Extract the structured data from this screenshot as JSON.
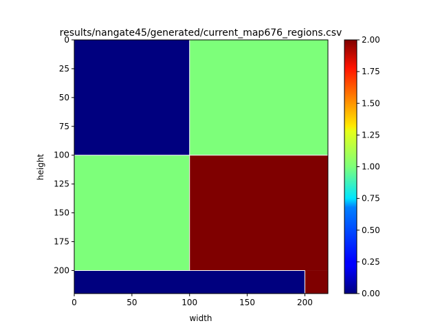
{
  "chart_data": {
    "type": "heatmap",
    "title": "results/nangate45/generated/current_map676_regions.csv",
    "xlabel": "width",
    "ylabel": "height",
    "xlim": [
      0,
      220
    ],
    "ylim": [
      220,
      0
    ],
    "y_inverted": true,
    "x_ticks": [
      0,
      50,
      100,
      150,
      200
    ],
    "y_ticks": [
      0,
      25,
      50,
      75,
      100,
      125,
      150,
      175,
      200
    ],
    "colormap": "jet",
    "colorbar": {
      "range": [
        0.0,
        2.0
      ],
      "ticks": [
        "0.00",
        "0.25",
        "0.50",
        "0.75",
        "1.00",
        "1.25",
        "1.50",
        "1.75",
        "2.00"
      ]
    },
    "regions": [
      {
        "x": [
          0,
          100
        ],
        "y": [
          0,
          100
        ],
        "value": 0
      },
      {
        "x": [
          100,
          220
        ],
        "y": [
          0,
          100
        ],
        "value": 1
      },
      {
        "x": [
          0,
          100
        ],
        "y": [
          100,
          200
        ],
        "value": 1
      },
      {
        "x": [
          100,
          220
        ],
        "y": [
          100,
          200
        ],
        "value": 2
      },
      {
        "x": [
          0,
          200
        ],
        "y": [
          200,
          220
        ],
        "value": 0
      },
      {
        "x": [
          200,
          220
        ],
        "y": [
          200,
          220
        ],
        "value": 2
      }
    ],
    "colors": {
      "0": "#00007f",
      "1": "#7dff7a",
      "2": "#7f0000",
      "boundary": "#ffffff"
    }
  }
}
